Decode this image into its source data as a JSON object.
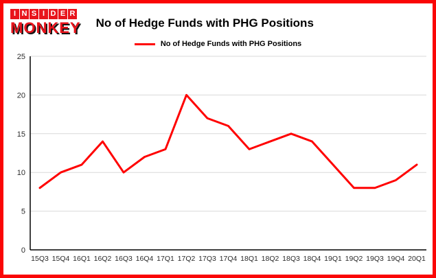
{
  "logo": {
    "line1": "INSIDER",
    "line2": "MONKEY"
  },
  "header": {
    "title": "No of Hedge Funds with PHG Positions"
  },
  "legend": {
    "label": "No of Hedge Funds with PHG Positions"
  },
  "colors": {
    "accent_red": "#ff0000",
    "border_red": "#fa0606",
    "grid": "#d9d9d9",
    "axis": "#000000",
    "tick_label": "#2b2b2b"
  },
  "chart_data": {
    "type": "line",
    "title": "No of Hedge Funds with PHG Positions",
    "categories": [
      "15Q3",
      "15Q4",
      "16Q1",
      "16Q2",
      "16Q3",
      "16Q4",
      "17Q1",
      "17Q2",
      "17Q3",
      "17Q4",
      "18Q1",
      "18Q2",
      "18Q3",
      "18Q4",
      "19Q1",
      "19Q2",
      "19Q3",
      "19Q4",
      "20Q1"
    ],
    "values": [
      8,
      10,
      11,
      14,
      10,
      12,
      13,
      20,
      17,
      16,
      13,
      14,
      15,
      14,
      11,
      8,
      8,
      9,
      11
    ],
    "xlabel": "",
    "ylabel": "",
    "ylim": [
      0,
      25
    ],
    "yticks": [
      0,
      5,
      10,
      15,
      20,
      25
    ],
    "grid": true,
    "legend_position": "top",
    "line_color": "#ff0000"
  }
}
